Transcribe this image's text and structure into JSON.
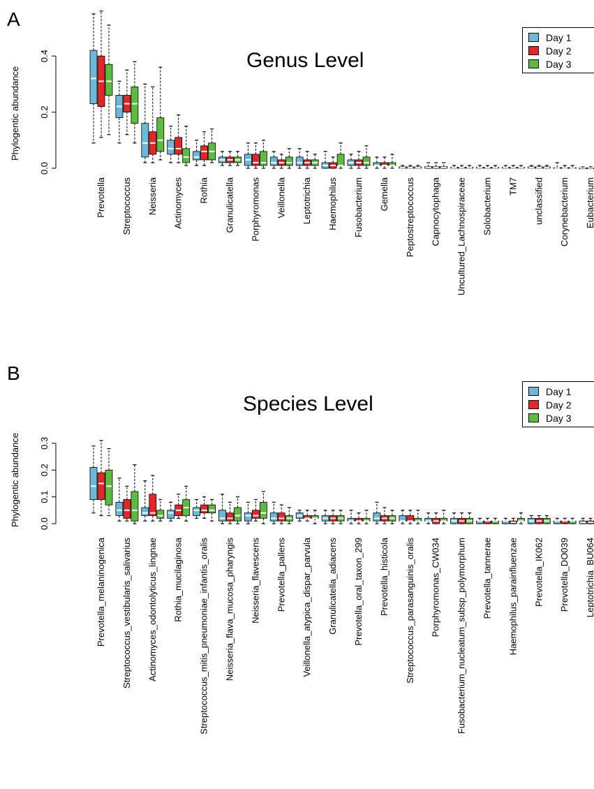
{
  "colors": {
    "day1": "#6bb8d8",
    "day2": "#e32727",
    "day3": "#5dbb3f"
  },
  "chart_data": [
    {
      "panel": "A",
      "type": "boxplot",
      "title": "Genus Level",
      "ylabel": "Phylogentic abundance",
      "xlabel": "",
      "ylim": [
        0,
        0.5
      ],
      "yticks": [
        "0.0",
        "0.2",
        "0.4"
      ],
      "legend": {
        "position": "top-right",
        "entries": [
          "Day 1",
          "Day 2",
          "Day 3"
        ]
      },
      "categories": [
        "Prevotella",
        "Streptococcus",
        "Neisseria",
        "Actinomyces",
        "Rothia",
        "Granulicatella",
        "Porphyromonas",
        "Veillonella",
        "Leptotrichia",
        "Haemophilus",
        "Fusobacterium",
        "Gemella",
        "Peptostreptococcus",
        "Capnocytophaga",
        "Uncultured_Lachnospiraceae",
        "Solobacterium",
        "TM7",
        "unclassified",
        "Corynebacterium",
        "Eubacterium"
      ],
      "series": [
        {
          "name": "Day 1",
          "boxes": [
            [
              0.09,
              0.23,
              0.32,
              0.42,
              0.55
            ],
            [
              0.09,
              0.18,
              0.22,
              0.26,
              0.31
            ],
            [
              0.02,
              0.04,
              0.09,
              0.16,
              0.3
            ],
            [
              0.02,
              0.05,
              0.07,
              0.1,
              0.15
            ],
            [
              0.01,
              0.03,
              0.04,
              0.06,
              0.1
            ],
            [
              0.01,
              0.02,
              0.03,
              0.04,
              0.06
            ],
            [
              0.0,
              0.01,
              0.03,
              0.05,
              0.09
            ],
            [
              0.0,
              0.01,
              0.02,
              0.04,
              0.06
            ],
            [
              0.0,
              0.01,
              0.02,
              0.04,
              0.07
            ],
            [
              0.0,
              0.0,
              0.01,
              0.02,
              0.06
            ],
            [
              0.0,
              0.01,
              0.02,
              0.03,
              0.05
            ],
            [
              0.0,
              0.01,
              0.01,
              0.02,
              0.04
            ],
            [
              0.0,
              0.0,
              0.002,
              0.005,
              0.01
            ],
            [
              0.0,
              0.0,
              0.003,
              0.006,
              0.02
            ],
            [
              0.0,
              0.0,
              0.002,
              0.004,
              0.01
            ],
            [
              0.0,
              0.0,
              0.002,
              0.004,
              0.01
            ],
            [
              0.0,
              0.0,
              0.002,
              0.004,
              0.01
            ],
            [
              0.0,
              0.0,
              0.002,
              0.005,
              0.01
            ],
            [
              0.0,
              0.0,
              0.001,
              0.003,
              0.02
            ],
            [
              0.0,
              0.0,
              0.001,
              0.002,
              0.005
            ]
          ]
        },
        {
          "name": "Day 2",
          "boxes": [
            [
              0.11,
              0.22,
              0.31,
              0.4,
              0.56
            ],
            [
              0.12,
              0.2,
              0.23,
              0.26,
              0.35
            ],
            [
              0.02,
              0.05,
              0.09,
              0.13,
              0.29
            ],
            [
              0.02,
              0.05,
              0.07,
              0.11,
              0.19
            ],
            [
              0.01,
              0.03,
              0.06,
              0.08,
              0.13
            ],
            [
              0.01,
              0.02,
              0.03,
              0.04,
              0.06
            ],
            [
              0.0,
              0.01,
              0.02,
              0.05,
              0.09
            ],
            [
              0.0,
              0.01,
              0.02,
              0.03,
              0.05
            ],
            [
              0.0,
              0.01,
              0.02,
              0.03,
              0.06
            ],
            [
              0.0,
              0.0,
              0.01,
              0.02,
              0.04
            ],
            [
              0.0,
              0.01,
              0.02,
              0.03,
              0.06
            ],
            [
              0.0,
              0.01,
              0.01,
              0.02,
              0.04
            ],
            [
              0.0,
              0.0,
              0.002,
              0.005,
              0.01
            ],
            [
              0.0,
              0.0,
              0.003,
              0.006,
              0.02
            ],
            [
              0.0,
              0.0,
              0.002,
              0.004,
              0.01
            ],
            [
              0.0,
              0.0,
              0.002,
              0.004,
              0.01
            ],
            [
              0.0,
              0.0,
              0.002,
              0.004,
              0.01
            ],
            [
              0.0,
              0.0,
              0.002,
              0.005,
              0.01
            ],
            [
              0.0,
              0.0,
              0.001,
              0.003,
              0.01
            ],
            [
              0.0,
              0.0,
              0.001,
              0.002,
              0.005
            ]
          ]
        },
        {
          "name": "Day 3",
          "boxes": [
            [
              0.12,
              0.26,
              0.31,
              0.37,
              0.51
            ],
            [
              0.09,
              0.16,
              0.23,
              0.29,
              0.38
            ],
            [
              0.03,
              0.06,
              0.1,
              0.18,
              0.36
            ],
            [
              0.01,
              0.02,
              0.04,
              0.07,
              0.15
            ],
            [
              0.02,
              0.03,
              0.06,
              0.09,
              0.14
            ],
            [
              0.01,
              0.02,
              0.03,
              0.04,
              0.06
            ],
            [
              0.0,
              0.01,
              0.02,
              0.06,
              0.1
            ],
            [
              0.0,
              0.01,
              0.02,
              0.04,
              0.07
            ],
            [
              0.0,
              0.01,
              0.02,
              0.03,
              0.05
            ],
            [
              0.0,
              0.01,
              0.01,
              0.05,
              0.09
            ],
            [
              0.0,
              0.01,
              0.02,
              0.04,
              0.08
            ],
            [
              0.0,
              0.01,
              0.01,
              0.02,
              0.05
            ],
            [
              0.0,
              0.0,
              0.002,
              0.005,
              0.01
            ],
            [
              0.0,
              0.0,
              0.003,
              0.006,
              0.02
            ],
            [
              0.0,
              0.0,
              0.002,
              0.004,
              0.01
            ],
            [
              0.0,
              0.0,
              0.002,
              0.004,
              0.01
            ],
            [
              0.0,
              0.0,
              0.002,
              0.004,
              0.01
            ],
            [
              0.0,
              0.0,
              0.002,
              0.005,
              0.01
            ],
            [
              0.0,
              0.0,
              0.001,
              0.003,
              0.01
            ],
            [
              0.0,
              0.0,
              0.001,
              0.002,
              0.005
            ]
          ]
        }
      ]
    },
    {
      "panel": "B",
      "type": "boxplot",
      "title": "Species Level",
      "ylabel": "Phylogentic abundance",
      "xlabel": "",
      "ylim": [
        0,
        0.37
      ],
      "yticks": [
        "0.0",
        "0.1",
        "0.2",
        "0.3"
      ],
      "legend": {
        "position": "top-right",
        "entries": [
          "Day 1",
          "Day 2",
          "Day 3"
        ]
      },
      "categories": [
        "Prevotella_melaninogenica",
        "Streptococcus_vestibularis_salivarius",
        "Actinomyces_odontolyticus_lingnae",
        "Rothia_mucilaginosa",
        "Streptococcus_mitis_pneumoniae_infantis_oralis",
        "Neisseria_flava_mucosa_pharyngis",
        "Neisseria_flavescens",
        "Prevotella_pallens",
        "Veillonella_atypica_dispar_parvula",
        "Granulicatella_adiacens",
        "Prevotella_oral_taxon_299",
        "Prevotella_histicola",
        "Streptococcus_parasanguinis_oralis",
        "Porphyromonas_CW034",
        "Fusobacterium_nucleatum_subsp_polymorphum",
        "Prevotella_tannerae",
        "Haemophilus_parainfluenzae",
        "Prevotella_IK062",
        "Prevotella_DO039",
        "Leptotrichia_BU064"
      ],
      "series": [
        {
          "name": "Day 1",
          "boxes": [
            [
              0.04,
              0.09,
              0.14,
              0.21,
              0.29
            ],
            [
              0.01,
              0.03,
              0.05,
              0.08,
              0.17
            ],
            [
              0.01,
              0.03,
              0.04,
              0.06,
              0.16
            ],
            [
              0.01,
              0.02,
              0.04,
              0.05,
              0.08
            ],
            [
              0.02,
              0.03,
              0.05,
              0.06,
              0.09
            ],
            [
              0.0,
              0.01,
              0.02,
              0.05,
              0.11
            ],
            [
              0.0,
              0.01,
              0.03,
              0.04,
              0.08
            ],
            [
              0.0,
              0.01,
              0.02,
              0.04,
              0.08
            ],
            [
              0.01,
              0.02,
              0.03,
              0.04,
              0.05
            ],
            [
              0.0,
              0.01,
              0.02,
              0.03,
              0.05
            ],
            [
              0.0,
              0.01,
              0.01,
              0.02,
              0.05
            ],
            [
              0.0,
              0.01,
              0.02,
              0.04,
              0.08
            ],
            [
              0.0,
              0.01,
              0.01,
              0.03,
              0.05
            ],
            [
              0.0,
              0.01,
              0.01,
              0.02,
              0.04
            ],
            [
              0.0,
              0.0,
              0.01,
              0.02,
              0.04
            ],
            [
              0.0,
              0.0,
              0.01,
              0.01,
              0.02
            ],
            [
              0.0,
              0.0,
              0.01,
              0.01,
              0.02
            ],
            [
              0.0,
              0.0,
              0.01,
              0.02,
              0.03
            ],
            [
              0.0,
              0.0,
              0.01,
              0.01,
              0.02
            ],
            [
              0.0,
              0.0,
              0.005,
              0.01,
              0.02
            ]
          ]
        },
        {
          "name": "Day 2",
          "boxes": [
            [
              0.03,
              0.09,
              0.15,
              0.19,
              0.31
            ],
            [
              0.01,
              0.02,
              0.05,
              0.09,
              0.14
            ],
            [
              0.01,
              0.03,
              0.04,
              0.11,
              0.18
            ],
            [
              0.02,
              0.03,
              0.05,
              0.07,
              0.11
            ],
            [
              0.02,
              0.04,
              0.05,
              0.07,
              0.1
            ],
            [
              0.0,
              0.01,
              0.02,
              0.04,
              0.08
            ],
            [
              0.01,
              0.02,
              0.03,
              0.05,
              0.09
            ],
            [
              0.0,
              0.01,
              0.02,
              0.04,
              0.07
            ],
            [
              0.01,
              0.02,
              0.02,
              0.03,
              0.05
            ],
            [
              0.0,
              0.01,
              0.02,
              0.03,
              0.05
            ],
            [
              0.0,
              0.01,
              0.01,
              0.02,
              0.04
            ],
            [
              0.0,
              0.01,
              0.02,
              0.03,
              0.06
            ],
            [
              0.0,
              0.01,
              0.01,
              0.03,
              0.05
            ],
            [
              0.0,
              0.0,
              0.01,
              0.02,
              0.04
            ],
            [
              0.0,
              0.0,
              0.01,
              0.02,
              0.04
            ],
            [
              0.0,
              0.0,
              0.01,
              0.01,
              0.02
            ],
            [
              0.0,
              0.0,
              0.005,
              0.01,
              0.02
            ],
            [
              0.0,
              0.0,
              0.01,
              0.02,
              0.03
            ],
            [
              0.0,
              0.0,
              0.01,
              0.01,
              0.02
            ],
            [
              0.0,
              0.0,
              0.005,
              0.01,
              0.02
            ]
          ]
        },
        {
          "name": "Day 3",
          "boxes": [
            [
              0.03,
              0.07,
              0.14,
              0.2,
              0.28
            ],
            [
              0.0,
              0.01,
              0.05,
              0.12,
              0.22
            ],
            [
              0.01,
              0.02,
              0.03,
              0.05,
              0.09
            ],
            [
              0.01,
              0.03,
              0.06,
              0.09,
              0.14
            ],
            [
              0.01,
              0.04,
              0.05,
              0.07,
              0.09
            ],
            [
              0.0,
              0.01,
              0.03,
              0.06,
              0.1
            ],
            [
              0.0,
              0.02,
              0.04,
              0.08,
              0.12
            ],
            [
              0.0,
              0.01,
              0.02,
              0.03,
              0.06
            ],
            [
              0.0,
              0.02,
              0.02,
              0.03,
              0.05
            ],
            [
              0.0,
              0.01,
              0.02,
              0.03,
              0.05
            ],
            [
              0.0,
              0.01,
              0.01,
              0.02,
              0.05
            ],
            [
              0.0,
              0.01,
              0.02,
              0.03,
              0.05
            ],
            [
              0.0,
              0.01,
              0.01,
              0.02,
              0.05
            ],
            [
              0.0,
              0.01,
              0.01,
              0.02,
              0.05
            ],
            [
              0.0,
              0.0,
              0.01,
              0.02,
              0.04
            ],
            [
              0.0,
              0.0,
              0.01,
              0.01,
              0.02
            ],
            [
              0.0,
              0.01,
              0.01,
              0.02,
              0.04
            ],
            [
              0.0,
              0.0,
              0.01,
              0.02,
              0.03
            ],
            [
              0.0,
              0.0,
              0.01,
              0.01,
              0.02
            ],
            [
              0.0,
              0.0,
              0.005,
              0.01,
              0.02
            ]
          ]
        }
      ]
    }
  ]
}
